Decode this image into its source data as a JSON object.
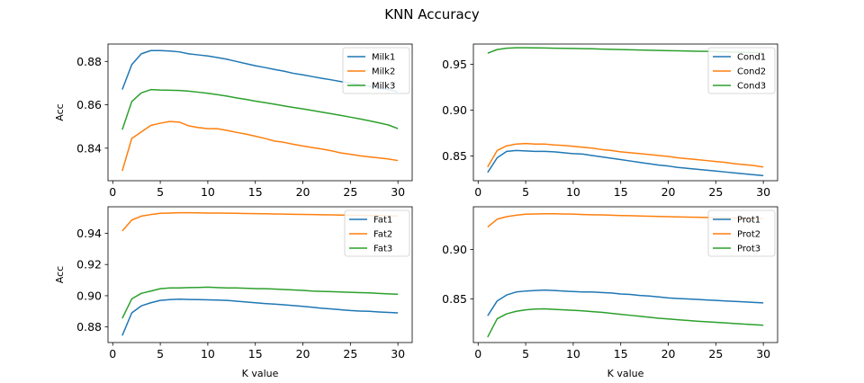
{
  "figure": {
    "title": "KNN Accuracy"
  },
  "chart_data": [
    {
      "type": "line",
      "xlabel": "",
      "ylabel": "Acc",
      "xlim": [
        -0.5,
        31.5
      ],
      "ylim": [
        0.825,
        0.888
      ],
      "xticks": [
        0,
        5,
        10,
        15,
        20,
        25,
        30
      ],
      "yticks": [
        0.84,
        0.86,
        0.88
      ],
      "ytick_labels": [
        "0.84",
        "0.86",
        "0.88"
      ],
      "legend": "upper right",
      "x": [
        1,
        2,
        3,
        4,
        5,
        6,
        7,
        8,
        9,
        10,
        11,
        12,
        13,
        14,
        15,
        16,
        17,
        18,
        19,
        20,
        21,
        22,
        23,
        24,
        25,
        26,
        27,
        28,
        29,
        30
      ],
      "series": [
        {
          "name": "Milk1",
          "color": "#1f77b4",
          "values": [
            0.867,
            0.8785,
            0.8835,
            0.885,
            0.885,
            0.8848,
            0.8844,
            0.8835,
            0.883,
            0.8825,
            0.8818,
            0.881,
            0.88,
            0.879,
            0.878,
            0.8772,
            0.8763,
            0.8755,
            0.8745,
            0.8738,
            0.873,
            0.8722,
            0.8715,
            0.8707,
            0.87,
            0.8693,
            0.8685,
            0.8677,
            0.867,
            0.866
          ]
        },
        {
          "name": "Milk2",
          "color": "#ff7f0e",
          "values": [
            0.8295,
            0.8445,
            0.8475,
            0.8505,
            0.8515,
            0.8523,
            0.852,
            0.8503,
            0.8495,
            0.849,
            0.849,
            0.8482,
            0.8473,
            0.8465,
            0.8455,
            0.8445,
            0.8433,
            0.8427,
            0.8418,
            0.841,
            0.8403,
            0.8396,
            0.8388,
            0.8378,
            0.8372,
            0.8365,
            0.836,
            0.8355,
            0.835,
            0.8343
          ]
        },
        {
          "name": "Milk3",
          "color": "#2ca02c",
          "values": [
            0.8485,
            0.8615,
            0.8655,
            0.867,
            0.8668,
            0.8667,
            0.8666,
            0.8663,
            0.8658,
            0.8653,
            0.8647,
            0.864,
            0.8632,
            0.8625,
            0.8617,
            0.861,
            0.8603,
            0.8595,
            0.8588,
            0.8581,
            0.8574,
            0.8566,
            0.8559,
            0.8551,
            0.8543,
            0.8535,
            0.8526,
            0.8517,
            0.8507,
            0.849
          ]
        }
      ]
    },
    {
      "type": "line",
      "xlabel": "",
      "ylabel": "",
      "xlim": [
        -0.5,
        31.5
      ],
      "ylim": [
        0.823,
        0.972
      ],
      "xticks": [
        0,
        5,
        10,
        15,
        20,
        25,
        30
      ],
      "yticks": [
        0.85,
        0.9,
        0.95
      ],
      "ytick_labels": [
        "0.85",
        "0.90",
        "0.95"
      ],
      "legend": "upper right",
      "x": [
        1,
        2,
        3,
        4,
        5,
        6,
        7,
        8,
        9,
        10,
        11,
        12,
        13,
        14,
        15,
        16,
        17,
        18,
        19,
        20,
        21,
        22,
        23,
        24,
        25,
        26,
        27,
        28,
        29,
        30
      ],
      "series": [
        {
          "name": "Cond1",
          "color": "#1f77b4",
          "values": [
            0.832,
            0.848,
            0.855,
            0.856,
            0.8555,
            0.855,
            0.855,
            0.8545,
            0.8535,
            0.8525,
            0.852,
            0.8505,
            0.849,
            0.8475,
            0.846,
            0.8445,
            0.843,
            0.8415,
            0.84,
            0.839,
            0.8375,
            0.8365,
            0.8355,
            0.8345,
            0.8335,
            0.8325,
            0.8315,
            0.8305,
            0.8295,
            0.8285
          ]
        },
        {
          "name": "Cond2",
          "color": "#ff7f0e",
          "values": [
            0.838,
            0.856,
            0.861,
            0.863,
            0.8635,
            0.863,
            0.863,
            0.862,
            0.8615,
            0.8605,
            0.8595,
            0.8585,
            0.857,
            0.856,
            0.8545,
            0.8535,
            0.8525,
            0.8515,
            0.8505,
            0.8495,
            0.848,
            0.847,
            0.846,
            0.845,
            0.844,
            0.843,
            0.8415,
            0.8405,
            0.8395,
            0.838
          ]
        },
        {
          "name": "Cond3",
          "color": "#2ca02c",
          "values": [
            0.962,
            0.966,
            0.9675,
            0.968,
            0.968,
            0.9678,
            0.9677,
            0.9675,
            0.9674,
            0.9672,
            0.967,
            0.9668,
            0.9665,
            0.9662,
            0.966,
            0.9658,
            0.9655,
            0.9653,
            0.965,
            0.9648,
            0.9646,
            0.9644,
            0.9642,
            0.964,
            0.9638,
            0.9635,
            0.9632,
            0.963,
            0.9627,
            0.9625
          ]
        }
      ]
    },
    {
      "type": "line",
      "xlabel": "K value",
      "ylabel": "Acc",
      "xlim": [
        -0.5,
        31.5
      ],
      "ylim": [
        0.87,
        0.957
      ],
      "xticks": [
        0,
        5,
        10,
        15,
        20,
        25,
        30
      ],
      "yticks": [
        0.88,
        0.9,
        0.92,
        0.94
      ],
      "ytick_labels": [
        "0.88",
        "0.90",
        "0.92",
        "0.94"
      ],
      "legend": "upper right",
      "x": [
        1,
        2,
        3,
        4,
        5,
        6,
        7,
        8,
        9,
        10,
        11,
        12,
        13,
        14,
        15,
        16,
        17,
        18,
        19,
        20,
        21,
        22,
        23,
        24,
        25,
        26,
        27,
        28,
        29,
        30
      ],
      "series": [
        {
          "name": "Fat1",
          "color": "#1f77b4",
          "values": [
            0.8745,
            0.889,
            0.8935,
            0.8955,
            0.897,
            0.8975,
            0.8978,
            0.8976,
            0.8975,
            0.8974,
            0.8972,
            0.897,
            0.8965,
            0.896,
            0.8955,
            0.895,
            0.8946,
            0.8942,
            0.8937,
            0.8932,
            0.8926,
            0.892,
            0.8915,
            0.891,
            0.8905,
            0.8902,
            0.89,
            0.8896,
            0.8893,
            0.889
          ]
        },
        {
          "name": "Fat2",
          "color": "#ff7f0e",
          "values": [
            0.9415,
            0.9485,
            0.951,
            0.952,
            0.9528,
            0.953,
            0.9532,
            0.9532,
            0.9531,
            0.953,
            0.953,
            0.9529,
            0.9528,
            0.9527,
            0.9526,
            0.9525,
            0.9524,
            0.9523,
            0.9522,
            0.9521,
            0.952,
            0.9519,
            0.9518,
            0.9517,
            0.9516,
            0.9515,
            0.9514,
            0.9513,
            0.9512,
            0.951
          ]
        },
        {
          "name": "Fat3",
          "color": "#2ca02c",
          "values": [
            0.8855,
            0.898,
            0.9015,
            0.903,
            0.9045,
            0.905,
            0.905,
            0.9052,
            0.9053,
            0.9055,
            0.9052,
            0.905,
            0.905,
            0.9048,
            0.9046,
            0.9045,
            0.9043,
            0.904,
            0.9037,
            0.9034,
            0.903,
            0.9028,
            0.9026,
            0.9024,
            0.9022,
            0.902,
            0.9018,
            0.9015,
            0.9012,
            0.901
          ]
        }
      ]
    },
    {
      "type": "line",
      "xlabel": "K value",
      "ylabel": "",
      "xlim": [
        -0.5,
        31.5
      ],
      "ylim": [
        0.806,
        0.943
      ],
      "xticks": [
        0,
        5,
        10,
        15,
        20,
        25,
        30
      ],
      "yticks": [
        0.85,
        0.9
      ],
      "ytick_labels": [
        "0.85",
        "0.90"
      ],
      "legend": "upper right",
      "x": [
        1,
        2,
        3,
        4,
        5,
        6,
        7,
        8,
        9,
        10,
        11,
        12,
        13,
        14,
        15,
        16,
        17,
        18,
        19,
        20,
        21,
        22,
        23,
        24,
        25,
        26,
        27,
        28,
        29,
        30
      ],
      "series": [
        {
          "name": "Prot1",
          "color": "#1f77b4",
          "values": [
            0.833,
            0.848,
            0.854,
            0.857,
            0.858,
            0.8585,
            0.859,
            0.8585,
            0.858,
            0.8575,
            0.857,
            0.857,
            0.8565,
            0.856,
            0.855,
            0.8545,
            0.8535,
            0.853,
            0.852,
            0.851,
            0.8505,
            0.85,
            0.8495,
            0.849,
            0.8485,
            0.848,
            0.8475,
            0.847,
            0.8465,
            0.846
          ]
        },
        {
          "name": "Prot2",
          "color": "#ff7f0e",
          "values": [
            0.9225,
            0.9305,
            0.933,
            0.9345,
            0.9355,
            0.9358,
            0.936,
            0.936,
            0.9358,
            0.9356,
            0.9352,
            0.935,
            0.9348,
            0.9345,
            0.9342,
            0.934,
            0.9337,
            0.9335,
            0.9332,
            0.933,
            0.9328,
            0.9326,
            0.9324,
            0.9322,
            0.932,
            0.9318,
            0.9316,
            0.9314,
            0.9312,
            0.931
          ]
        },
        {
          "name": "Prot3",
          "color": "#2ca02c",
          "values": [
            0.8115,
            0.83,
            0.835,
            0.8375,
            0.839,
            0.8398,
            0.84,
            0.8395,
            0.839,
            0.8385,
            0.838,
            0.8372,
            0.8365,
            0.8355,
            0.8345,
            0.8335,
            0.8325,
            0.8315,
            0.8305,
            0.8298,
            0.829,
            0.8283,
            0.8276,
            0.827,
            0.8264,
            0.8258,
            0.8252,
            0.8246,
            0.824,
            0.8235
          ]
        }
      ]
    }
  ]
}
